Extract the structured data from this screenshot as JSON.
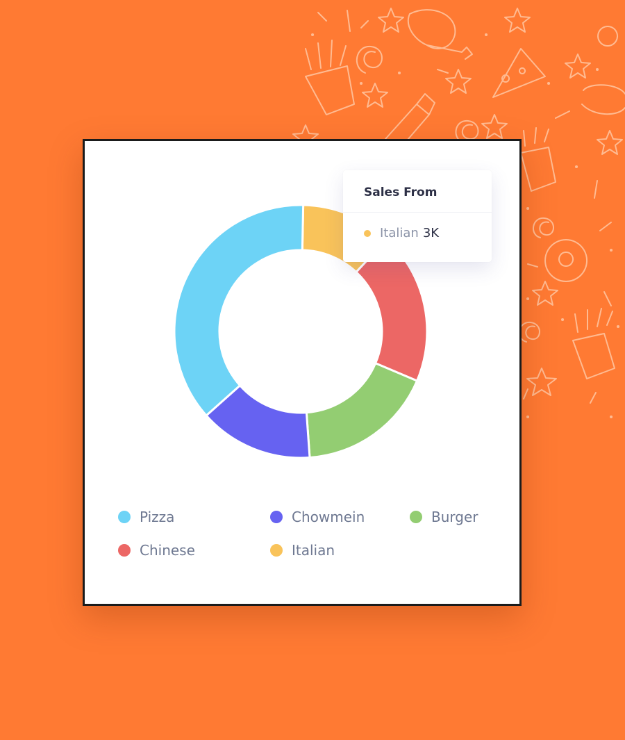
{
  "chart_data": {
    "type": "pie",
    "donut": true,
    "categories": [
      "Italian",
      "Chinese",
      "Burger",
      "Chowmein",
      "Pizza"
    ],
    "values": [
      3,
      5,
      4.5,
      3.75,
      9.5
    ],
    "colors": [
      "#F9C35A",
      "#EC6765",
      "#93CD72",
      "#6662F1",
      "#6DD3F6"
    ],
    "legend": {
      "placement": "bottom",
      "items": [
        {
          "label": "Pizza",
          "color": "#6DD3F6"
        },
        {
          "label": "Chowmein",
          "color": "#6662F1"
        },
        {
          "label": "Burger",
          "color": "#93CD72"
        },
        {
          "label": "Chinese",
          "color": "#EC6765"
        },
        {
          "label": "Italian",
          "color": "#F9C35A"
        }
      ]
    },
    "tooltip": {
      "title": "Sales From",
      "label": "Italian",
      "value": "3K",
      "color": "#F9C35A"
    }
  },
  "colors": {
    "background": "#FF7A33",
    "doodle": "#FFC7A3"
  }
}
